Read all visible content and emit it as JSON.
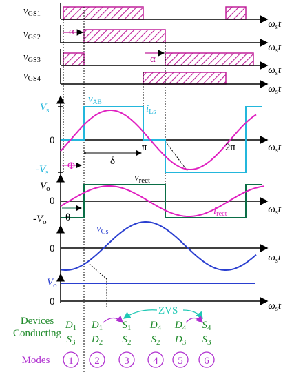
{
  "signals": [
    {
      "b": "v",
      "s": "GS1"
    },
    {
      "b": "v",
      "s": "GS2"
    },
    {
      "b": "v",
      "s": "GS3"
    },
    {
      "b": "v",
      "s": "GS4"
    }
  ],
  "time_axis": [
    {
      "b": "ω",
      "s": "s",
      "t": "t"
    },
    {
      "b": "ω",
      "s": "s",
      "t": "t"
    },
    {
      "b": "ω",
      "s": "s",
      "t": "t"
    },
    {
      "b": "ω",
      "s": "s",
      "t": "t"
    },
    {
      "b": "ω",
      "s": "s",
      "t": "t"
    },
    {
      "b": "ω",
      "s": "s",
      "t": "t"
    },
    {
      "b": "ω",
      "s": "s",
      "t": "t"
    },
    {
      "b": "ω",
      "s": "s",
      "t": "t"
    }
  ],
  "alpha": [
    "α",
    "α"
  ],
  "panel_vab": {
    "vab": {
      "b": "v",
      "s": "AB"
    },
    "ils": {
      "b": "i",
      "s": "Ls"
    },
    "vs": {
      "b": "V",
      "s": "s"
    },
    "zero": "0",
    "pi": "π",
    "two_pi": "2π",
    "neg_vs": {
      "b": "-V",
      "s": "s"
    },
    "phi": "Φ",
    "delta": "δ"
  },
  "panel_rect": {
    "vrect": {
      "b": "v",
      "s": "rect"
    },
    "vo": {
      "b": "V",
      "s": "o"
    },
    "zero": "0",
    "neg_vo": {
      "b": "-V",
      "s": "o"
    },
    "theta": "θ",
    "irect": {
      "b": "i",
      "s": "rect"
    }
  },
  "panel_vcs": {
    "vcs": {
      "b": "v",
      "s": "Cs"
    },
    "zero": "0"
  },
  "panel_vo": {
    "vo": {
      "b": "V",
      "s": "o"
    },
    "zero": "0"
  },
  "zvs": "ZVS",
  "devices_label": [
    "Devices",
    "Conducting"
  ],
  "devices": [
    [
      {
        "b": "D",
        "s": "1"
      },
      {
        "b": "S",
        "s": "3"
      }
    ],
    [
      {
        "b": "D",
        "s": "1"
      },
      {
        "b": "D",
        "s": "2"
      }
    ],
    [
      {
        "b": "S",
        "s": "1"
      },
      {
        "b": "S",
        "s": "2"
      }
    ],
    [
      {
        "b": "D",
        "s": "4"
      },
      {
        "b": "S",
        "s": "2"
      }
    ],
    [
      {
        "b": "D",
        "s": "4"
      },
      {
        "b": "D",
        "s": "3"
      }
    ],
    [
      {
        "b": "S",
        "s": "4"
      },
      {
        "b": "S",
        "s": "3"
      }
    ]
  ],
  "modes_label": "Modes",
  "modes": [
    "1",
    "2",
    "3",
    "4",
    "5",
    "6"
  ]
}
